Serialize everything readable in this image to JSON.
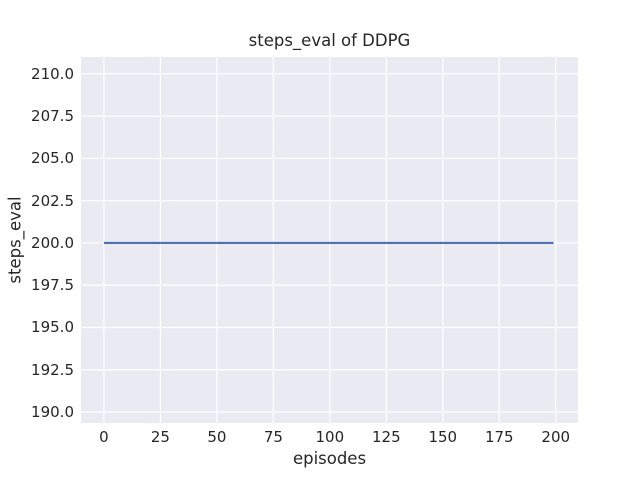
{
  "chart_data": {
    "type": "line",
    "title": "steps_eval of DDPG",
    "xlabel": "episodes",
    "ylabel": "steps_eval",
    "series": [
      {
        "name": "steps_eval",
        "color": "#4c72b0",
        "x": [
          0,
          199
        ],
        "y": [
          200.0,
          200.0
        ]
      }
    ],
    "xlim": [
      -10.15,
      209.85
    ],
    "ylim": [
      189.35,
      211.0
    ],
    "xticks": [
      0,
      25,
      50,
      75,
      100,
      125,
      150,
      175,
      200
    ],
    "xtick_labels": [
      "0",
      "25",
      "50",
      "75",
      "100",
      "125",
      "150",
      "175",
      "200"
    ],
    "yticks": [
      190.0,
      192.5,
      195.0,
      197.5,
      200.0,
      202.5,
      205.0,
      207.5,
      210.0
    ],
    "ytick_labels": [
      "190.0",
      "192.5",
      "195.0",
      "197.5",
      "200.0",
      "202.5",
      "205.0",
      "207.5",
      "210.0"
    ],
    "grid": true,
    "legend": false,
    "style": {
      "plot_background": "#eaeaf2",
      "grid_color": "#ffffff",
      "line_color": "#4c72b0",
      "text_color": "#262626",
      "figure_background": "#ffffff"
    }
  }
}
